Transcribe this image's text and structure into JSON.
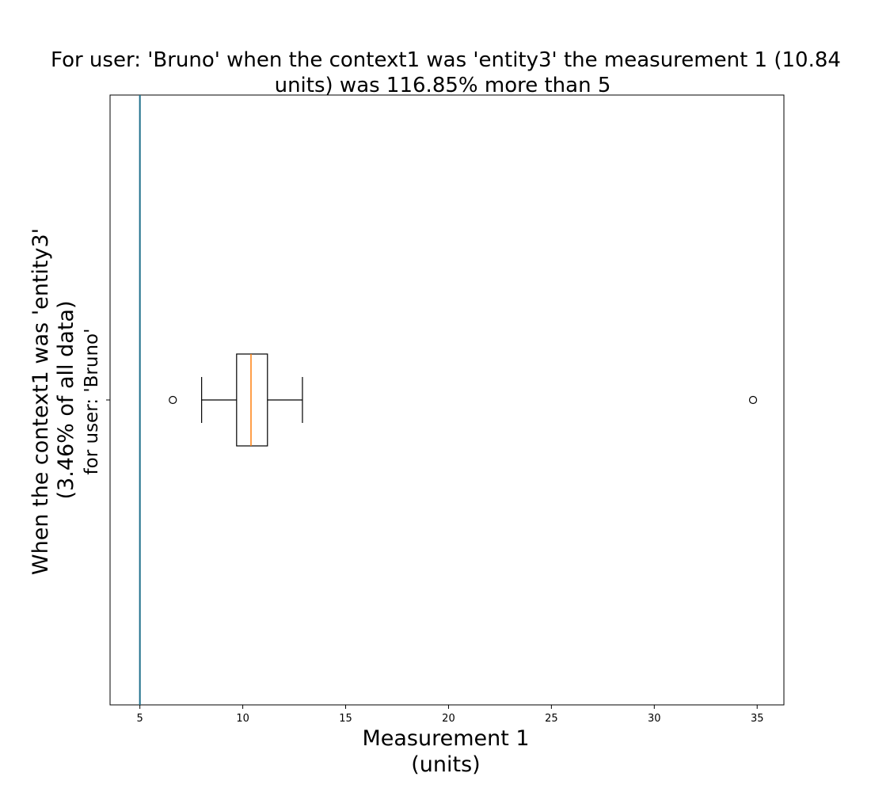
{
  "chart_data": {
    "type": "boxplot",
    "title_lines": [
      "For user: 'Bruno' when the context1 was 'entity3' the measurement 1 (10.84",
      "units) was 116.85% more than 5"
    ],
    "xlabel_lines": [
      "Measurement 1",
      "(units)"
    ],
    "ylabel_lines": [
      "When the context1 was 'entity3'",
      "(3.46% of all data)",
      "for user: 'Bruno'"
    ],
    "xlim": [
      3.55,
      36.3
    ],
    "xticks": [
      5,
      10,
      15,
      20,
      25,
      30,
      35
    ],
    "xtick_labels": [
      "5",
      "10",
      "15",
      "20",
      "25",
      "30",
      "35"
    ],
    "box": {
      "whisker_low": 8.0,
      "q1": 9.7,
      "median": 10.4,
      "q3": 11.2,
      "whisker_high": 12.9,
      "outliers": [
        6.6,
        34.8
      ]
    },
    "reference_line": {
      "x": 5,
      "color": "#1f6f8b"
    },
    "colors": {
      "median": "#ff7f0e",
      "box": "#000000",
      "reference": "#1f6f8b"
    },
    "grid": false,
    "legend": "none"
  }
}
